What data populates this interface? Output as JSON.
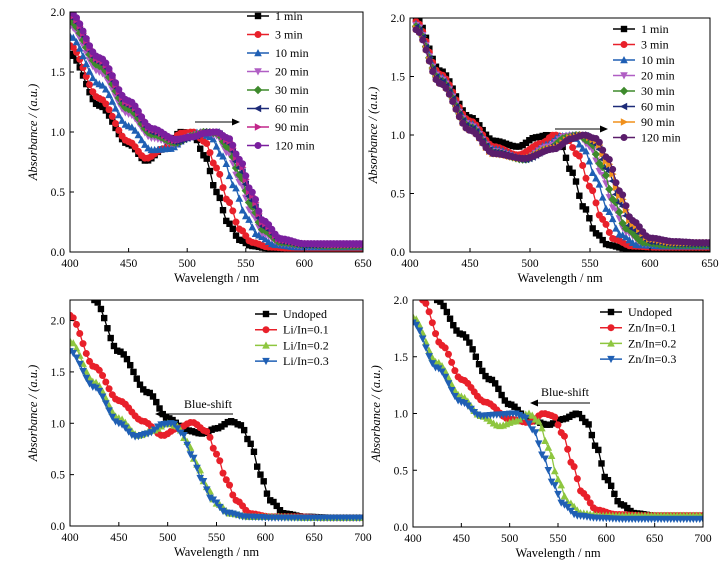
{
  "chart_data": [
    {
      "type": "line",
      "xlabel": "Wavelength / nm",
      "ylabel": "Absorbance / (a.u.)",
      "xlim": [
        400,
        650
      ],
      "ylim": [
        0,
        2.0
      ],
      "xticks": [
        "400",
        "450",
        "500",
        "550",
        "600",
        "650"
      ],
      "yticks": [
        "0.0",
        "0.5",
        "1.0",
        "1.5",
        "2.0"
      ],
      "legend_position": "top-right",
      "annotation": {
        "type": "arrow",
        "direction": "right",
        "text": ""
      },
      "series": [
        {
          "name": "1 min",
          "color": "#000000",
          "marker": "square",
          "x": [
            400,
            425,
            450,
            465,
            480,
            495,
            505,
            515,
            525,
            535,
            545,
            555,
            570,
            590,
            620,
            650
          ],
          "y": [
            1.65,
            1.22,
            0.9,
            0.76,
            0.86,
            1.0,
            0.98,
            0.8,
            0.5,
            0.24,
            0.1,
            0.05,
            0.03,
            0.03,
            0.03,
            0.03
          ]
        },
        {
          "name": "3 min",
          "color": "#e8202a",
          "marker": "circle",
          "x": [
            400,
            425,
            450,
            465,
            480,
            495,
            505,
            515,
            525,
            535,
            545,
            555,
            570,
            590,
            620,
            650
          ],
          "y": [
            1.72,
            1.28,
            0.92,
            0.78,
            0.86,
            0.99,
            1.0,
            0.92,
            0.7,
            0.42,
            0.19,
            0.08,
            0.04,
            0.03,
            0.03,
            0.03
          ]
        },
        {
          "name": "10 min",
          "color": "#1f5fb4",
          "marker": "triangle-up",
          "x": [
            400,
            425,
            450,
            470,
            485,
            500,
            510,
            520,
            530,
            540,
            550,
            560,
            575,
            595,
            620,
            650
          ],
          "y": [
            1.8,
            1.4,
            1.05,
            0.85,
            0.86,
            0.95,
            1.0,
            0.96,
            0.8,
            0.55,
            0.3,
            0.14,
            0.06,
            0.04,
            0.04,
            0.04
          ]
        },
        {
          "name": "20 min",
          "color": "#b05ec4",
          "marker": "triangle-down",
          "x": [
            400,
            425,
            450,
            470,
            490,
            505,
            515,
            525,
            535,
            545,
            555,
            565,
            580,
            600,
            625,
            650
          ],
          "y": [
            1.88,
            1.5,
            1.15,
            0.95,
            0.9,
            0.97,
            1.0,
            0.97,
            0.82,
            0.58,
            0.32,
            0.15,
            0.07,
            0.05,
            0.05,
            0.05
          ]
        },
        {
          "name": "30 min",
          "color": "#3e8a2c",
          "marker": "diamond",
          "x": [
            400,
            425,
            450,
            470,
            490,
            505,
            515,
            525,
            535,
            545,
            555,
            565,
            580,
            600,
            625,
            650
          ],
          "y": [
            1.92,
            1.55,
            1.19,
            0.98,
            0.91,
            0.97,
            1.0,
            0.99,
            0.87,
            0.64,
            0.38,
            0.18,
            0.08,
            0.06,
            0.05,
            0.05
          ]
        },
        {
          "name": "60 min",
          "color": "#1c2a78",
          "marker": "triangle-left",
          "x": [
            400,
            425,
            450,
            470,
            490,
            505,
            515,
            525,
            535,
            545,
            555,
            565,
            580,
            600,
            625,
            650
          ],
          "y": [
            1.96,
            1.58,
            1.22,
            1.0,
            0.92,
            0.96,
            1.0,
            1.0,
            0.91,
            0.7,
            0.43,
            0.21,
            0.09,
            0.06,
            0.06,
            0.06
          ]
        },
        {
          "name": "90 min",
          "color": "#c2268a",
          "marker": "triangle-right",
          "x": [
            400,
            425,
            450,
            470,
            490,
            505,
            515,
            525,
            535,
            545,
            555,
            565,
            580,
            600,
            625,
            650
          ],
          "y": [
            1.98,
            1.6,
            1.24,
            1.02,
            0.93,
            0.96,
            0.99,
            1.0,
            0.93,
            0.74,
            0.47,
            0.24,
            0.1,
            0.07,
            0.06,
            0.06
          ]
        },
        {
          "name": "120 min",
          "color": "#7a1f9e",
          "marker": "circle",
          "x": [
            400,
            425,
            450,
            470,
            490,
            505,
            515,
            525,
            535,
            545,
            555,
            565,
            580,
            600,
            625,
            650
          ],
          "y": [
            2.0,
            1.62,
            1.26,
            1.03,
            0.94,
            0.96,
            0.99,
            1.0,
            0.95,
            0.77,
            0.5,
            0.26,
            0.11,
            0.07,
            0.07,
            0.07
          ]
        }
      ]
    },
    {
      "type": "line",
      "xlabel": "Wavelength / nm",
      "ylabel": "Absorbance / (a.u.)",
      "xlim": [
        400,
        650
      ],
      "ylim": [
        0,
        2.0
      ],
      "xticks": [
        "400",
        "450",
        "500",
        "550",
        "600",
        "650"
      ],
      "yticks": [
        "0.0",
        "0.5",
        "1.0",
        "1.5",
        "2.0"
      ],
      "legend_position": "top-right",
      "annotation": {
        "type": "arrow",
        "direction": "right",
        "text": ""
      },
      "series": [
        {
          "name": "1 min",
          "color": "#000000",
          "marker": "square",
          "x": [
            405,
            425,
            450,
            470,
            490,
            505,
            515,
            525,
            535,
            545,
            555,
            565,
            580,
            600,
            625,
            650
          ],
          "y": [
            2.0,
            1.55,
            1.15,
            0.95,
            0.9,
            0.98,
            1.0,
            0.93,
            0.68,
            0.38,
            0.16,
            0.06,
            0.03,
            0.03,
            0.03,
            0.03
          ]
        },
        {
          "name": "3 min",
          "color": "#e8202a",
          "marker": "circle",
          "x": [
            405,
            425,
            450,
            470,
            490,
            510,
            520,
            530,
            540,
            550,
            560,
            570,
            585,
            605,
            630,
            650
          ],
          "y": [
            1.97,
            1.52,
            1.12,
            0.9,
            0.83,
            0.93,
            1.0,
            0.98,
            0.83,
            0.56,
            0.28,
            0.11,
            0.05,
            0.04,
            0.04,
            0.04
          ]
        },
        {
          "name": "10 min",
          "color": "#1f5fb4",
          "marker": "triangle-up",
          "x": [
            405,
            425,
            450,
            470,
            495,
            515,
            525,
            535,
            545,
            555,
            565,
            575,
            590,
            610,
            630,
            650
          ],
          "y": [
            1.95,
            1.5,
            1.1,
            0.88,
            0.8,
            0.92,
            0.99,
            1.0,
            0.88,
            0.63,
            0.35,
            0.15,
            0.06,
            0.05,
            0.05,
            0.05
          ]
        },
        {
          "name": "20 min",
          "color": "#b05ec4",
          "marker": "triangle-down",
          "x": [
            405,
            425,
            450,
            470,
            495,
            515,
            530,
            540,
            550,
            560,
            570,
            580,
            595,
            615,
            635,
            650
          ],
          "y": [
            1.94,
            1.48,
            1.08,
            0.86,
            0.79,
            0.9,
            0.99,
            1.0,
            0.9,
            0.66,
            0.37,
            0.17,
            0.07,
            0.06,
            0.06,
            0.06
          ]
        },
        {
          "name": "30 min",
          "color": "#3e8a2c",
          "marker": "diamond",
          "x": [
            405,
            425,
            450,
            470,
            495,
            515,
            530,
            540,
            550,
            560,
            570,
            580,
            595,
            615,
            635,
            650
          ],
          "y": [
            1.93,
            1.47,
            1.07,
            0.85,
            0.79,
            0.88,
            0.98,
            1.0,
            0.94,
            0.73,
            0.44,
            0.2,
            0.08,
            0.06,
            0.06,
            0.06
          ]
        },
        {
          "name": "60 min",
          "color": "#1c2a78",
          "marker": "triangle-left",
          "x": [
            405,
            425,
            450,
            470,
            495,
            520,
            535,
            545,
            555,
            565,
            575,
            585,
            600,
            620,
            640,
            650
          ],
          "y": [
            1.92,
            1.46,
            1.06,
            0.85,
            0.79,
            0.9,
            0.99,
            1.0,
            0.92,
            0.7,
            0.42,
            0.2,
            0.09,
            0.07,
            0.07,
            0.07
          ]
        },
        {
          "name": "90 min",
          "color": "#f0901c",
          "marker": "triangle-right",
          "x": [
            405,
            425,
            450,
            470,
            495,
            520,
            535,
            545,
            555,
            565,
            575,
            585,
            600,
            620,
            640,
            650
          ],
          "y": [
            1.91,
            1.45,
            1.05,
            0.84,
            0.8,
            0.89,
            0.98,
            1.0,
            0.95,
            0.76,
            0.48,
            0.24,
            0.11,
            0.08,
            0.08,
            0.08
          ]
        },
        {
          "name": "120 min",
          "color": "#5a1c6a",
          "marker": "circle",
          "x": [
            405,
            425,
            450,
            470,
            495,
            520,
            535,
            545,
            555,
            565,
            575,
            585,
            600,
            620,
            640,
            650
          ],
          "y": [
            1.9,
            1.44,
            1.04,
            0.84,
            0.8,
            0.88,
            0.97,
            1.0,
            0.97,
            0.8,
            0.52,
            0.27,
            0.12,
            0.09,
            0.08,
            0.08
          ]
        }
      ]
    },
    {
      "type": "line",
      "xlabel": "Wavelength / nm",
      "ylabel": "Absorbance / (a.u.)",
      "xlim": [
        400,
        700
      ],
      "ylim": [
        0,
        2.2
      ],
      "xticks": [
        "400",
        "450",
        "500",
        "550",
        "600",
        "650",
        "700"
      ],
      "yticks": [
        "0.0",
        "0.5",
        "1.0",
        "1.5",
        "2.0"
      ],
      "legend_position": "top-right",
      "annotation": {
        "type": "arrow",
        "direction": "left",
        "text": "Blue-shift"
      },
      "series": [
        {
          "name": "Undoped",
          "color": "#000000",
          "marker": "square",
          "x": [
            425,
            450,
            480,
            500,
            520,
            535,
            550,
            565,
            575,
            585,
            595,
            605,
            620,
            640,
            670,
            700
          ],
          "y": [
            2.2,
            1.7,
            1.3,
            1.05,
            0.93,
            0.9,
            0.95,
            1.02,
            0.98,
            0.8,
            0.5,
            0.25,
            0.12,
            0.09,
            0.08,
            0.08
          ]
        },
        {
          "name": "Li/In=0.1",
          "color": "#e8202a",
          "marker": "circle",
          "x": [
            400,
            425,
            450,
            475,
            495,
            510,
            525,
            540,
            550,
            560,
            570,
            585,
            605,
            630,
            660,
            700
          ],
          "y": [
            2.05,
            1.55,
            1.22,
            1.02,
            0.88,
            0.95,
            1.01,
            0.92,
            0.7,
            0.45,
            0.25,
            0.12,
            0.09,
            0.09,
            0.08,
            0.08
          ]
        },
        {
          "name": "Li/In=0.2",
          "color": "#8ec63f",
          "marker": "triangle-up",
          "x": [
            400,
            425,
            450,
            470,
            485,
            500,
            510,
            520,
            530,
            540,
            550,
            565,
            585,
            610,
            650,
            700
          ],
          "y": [
            1.8,
            1.4,
            1.05,
            0.88,
            0.93,
            1.0,
            0.97,
            0.82,
            0.6,
            0.38,
            0.22,
            0.12,
            0.09,
            0.09,
            0.08,
            0.08
          ]
        },
        {
          "name": "Li/In=0.3",
          "color": "#1f5fb4",
          "marker": "triangle-down",
          "x": [
            400,
            425,
            450,
            467,
            480,
            495,
            505,
            515,
            525,
            535,
            545,
            560,
            580,
            610,
            650,
            700
          ],
          "y": [
            1.7,
            1.35,
            1.0,
            0.87,
            0.9,
            0.99,
            1.0,
            0.9,
            0.68,
            0.45,
            0.26,
            0.13,
            0.09,
            0.08,
            0.08,
            0.08
          ]
        }
      ]
    },
    {
      "type": "line",
      "xlabel": "Wavelength / nm",
      "ylabel": "Absorbance / (a.u.)",
      "xlim": [
        400,
        700
      ],
      "ylim": [
        0,
        2.0
      ],
      "xticks": [
        "400",
        "450",
        "500",
        "550",
        "600",
        "650",
        "700"
      ],
      "yticks": [
        "0.0",
        "0.5",
        "1.0",
        "1.5",
        "2.0"
      ],
      "legend_position": "top-right",
      "annotation": {
        "type": "arrow",
        "direction": "left",
        "text": "Blue-shift"
      },
      "series": [
        {
          "name": "Undoped",
          "color": "#000000",
          "marker": "square",
          "x": [
            425,
            450,
            480,
            500,
            520,
            540,
            555,
            570,
            580,
            590,
            600,
            615,
            630,
            650,
            675,
            700
          ],
          "y": [
            2.0,
            1.7,
            1.3,
            1.08,
            0.95,
            0.9,
            0.95,
            1.0,
            0.92,
            0.7,
            0.42,
            0.2,
            0.12,
            0.1,
            0.1,
            0.1
          ]
        },
        {
          "name": "Zn/In=0.1",
          "color": "#e8202a",
          "marker": "circle",
          "x": [
            410,
            430,
            450,
            475,
            500,
            520,
            535,
            545,
            555,
            565,
            575,
            590,
            610,
            640,
            670,
            700
          ],
          "y": [
            2.0,
            1.6,
            1.3,
            1.1,
            0.95,
            0.92,
            1.0,
            0.98,
            0.82,
            0.55,
            0.3,
            0.15,
            0.11,
            0.1,
            0.1,
            0.1
          ]
        },
        {
          "name": "Zn/In=0.2",
          "color": "#8ec63f",
          "marker": "triangle-up",
          "x": [
            400,
            425,
            450,
            470,
            490,
            505,
            520,
            530,
            540,
            550,
            560,
            575,
            595,
            625,
            660,
            700
          ],
          "y": [
            1.85,
            1.45,
            1.15,
            0.98,
            0.89,
            0.93,
            1.0,
            0.93,
            0.7,
            0.42,
            0.22,
            0.12,
            0.1,
            0.1,
            0.1,
            0.1
          ]
        },
        {
          "name": "Zn/In=0.3",
          "color": "#1f5fb4",
          "marker": "triangle-down",
          "x": [
            400,
            425,
            450,
            470,
            490,
            505,
            515,
            525,
            535,
            545,
            555,
            570,
            590,
            620,
            660,
            700
          ],
          "y": [
            1.8,
            1.4,
            1.1,
            0.98,
            0.99,
            1.0,
            0.97,
            0.85,
            0.62,
            0.38,
            0.2,
            0.1,
            0.08,
            0.07,
            0.07,
            0.07
          ]
        }
      ]
    }
  ]
}
